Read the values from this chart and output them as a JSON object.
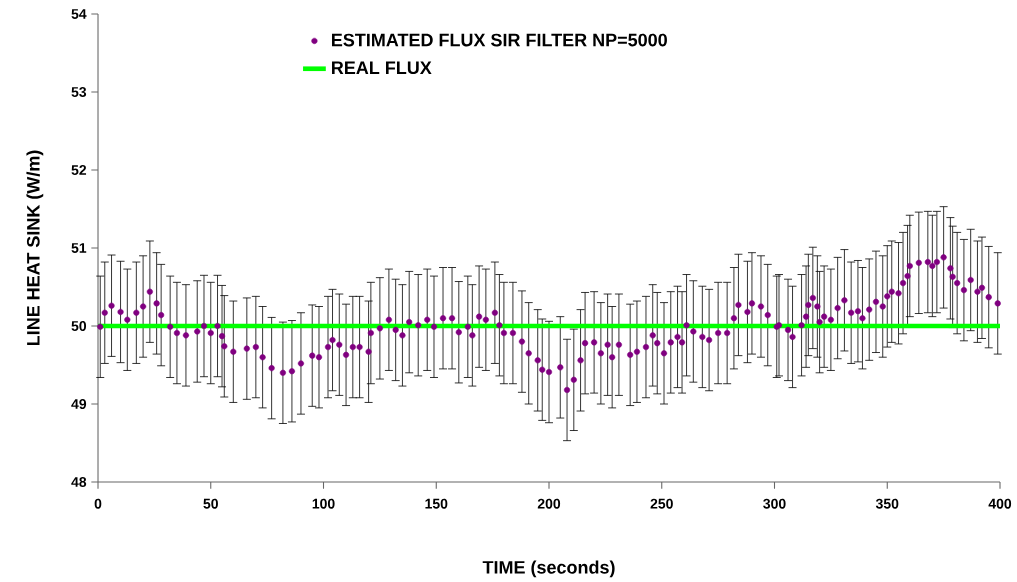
{
  "chart_data": {
    "type": "scatter",
    "xlabel": "TIME (seconds)",
    "ylabel": "LINE HEAT SINK (W/m)",
    "xlim": [
      0,
      400
    ],
    "xticks": [
      0,
      50,
      100,
      150,
      200,
      250,
      300,
      350,
      400
    ],
    "ylim": [
      48,
      54
    ],
    "yticks": [
      48,
      49,
      50,
      51,
      52,
      53,
      54
    ],
    "grid": false,
    "legend": "top",
    "series": [
      {
        "name": "ESTIMATED  FLUX SIR FILTER NP=5000",
        "type": "scatter",
        "color": "#800080",
        "x": [
          1,
          3,
          6,
          10,
          13,
          17,
          20,
          23,
          26,
          28,
          32,
          35,
          39,
          44,
          47,
          50,
          53,
          55,
          56,
          60,
          66,
          70,
          73,
          77,
          82,
          86,
          90,
          95,
          98,
          102,
          104,
          107,
          110,
          113,
          116,
          120,
          121,
          125,
          129,
          132,
          135,
          138,
          142,
          146,
          149,
          153,
          157,
          160,
          164,
          166,
          169,
          172,
          176,
          178,
          180,
          184,
          188,
          191,
          195,
          197,
          200,
          205,
          208,
          211,
          214,
          216,
          220,
          223,
          226,
          228,
          231,
          236,
          239,
          243,
          246,
          248,
          251,
          254,
          257,
          259,
          261,
          264,
          268,
          271,
          275,
          279,
          282,
          284,
          288,
          290,
          294,
          297,
          301,
          302,
          306,
          308,
          312,
          314,
          315,
          317,
          319,
          320,
          322,
          325,
          328,
          331,
          334,
          337,
          339,
          342,
          345,
          348,
          350,
          352,
          355,
          357,
          359,
          360,
          364,
          368,
          370,
          372,
          375,
          378,
          379,
          381,
          384,
          387,
          390,
          392,
          395,
          399
        ],
        "values": [
          49.99,
          50.17,
          50.26,
          50.18,
          50.08,
          50.17,
          50.25,
          50.44,
          50.29,
          50.14,
          49.99,
          49.91,
          49.88,
          49.93,
          50.0,
          49.91,
          50.0,
          49.87,
          49.74,
          49.67,
          49.71,
          49.73,
          49.6,
          49.46,
          49.4,
          49.42,
          49.52,
          49.62,
          49.6,
          49.73,
          49.82,
          49.76,
          49.63,
          49.73,
          49.73,
          49.67,
          49.91,
          49.97,
          50.08,
          49.95,
          49.88,
          50.05,
          50.01,
          50.08,
          49.99,
          50.1,
          50.1,
          49.92,
          49.99,
          49.88,
          50.12,
          50.08,
          50.17,
          50.01,
          49.91,
          49.91,
          49.8,
          49.65,
          49.56,
          49.44,
          49.41,
          49.47,
          49.18,
          49.31,
          49.56,
          49.78,
          49.79,
          49.65,
          49.76,
          49.6,
          49.76,
          49.63,
          49.67,
          49.73,
          49.88,
          49.78,
          49.65,
          49.79,
          49.86,
          49.79,
          50.01,
          49.93,
          49.86,
          49.82,
          49.91,
          49.91,
          50.1,
          50.27,
          50.18,
          50.29,
          50.25,
          50.14,
          49.99,
          50.01,
          49.95,
          49.86,
          50.01,
          50.12,
          50.27,
          50.36,
          50.25,
          50.05,
          50.12,
          50.08,
          50.23,
          50.33,
          50.17,
          50.19,
          50.1,
          50.21,
          50.31,
          50.25,
          50.38,
          50.44,
          50.42,
          50.55,
          50.64,
          50.77,
          50.81,
          50.82,
          50.77,
          50.82,
          50.88,
          50.74,
          50.63,
          50.55,
          50.46,
          50.59,
          50.44,
          50.49,
          50.37,
          50.29
        ],
        "errors": [
          0.65,
          0.65,
          0.65,
          0.65,
          0.65,
          0.65,
          0.65,
          0.65,
          0.65,
          0.65,
          0.65,
          0.65,
          0.65,
          0.65,
          0.65,
          0.65,
          0.65,
          0.65,
          0.65,
          0.65,
          0.65,
          0.65,
          0.65,
          0.65,
          0.65,
          0.65,
          0.65,
          0.65,
          0.65,
          0.65,
          0.65,
          0.65,
          0.65,
          0.65,
          0.65,
          0.65,
          0.65,
          0.65,
          0.65,
          0.65,
          0.65,
          0.65,
          0.65,
          0.65,
          0.65,
          0.65,
          0.65,
          0.65,
          0.65,
          0.65,
          0.65,
          0.65,
          0.65,
          0.65,
          0.65,
          0.65,
          0.65,
          0.65,
          0.65,
          0.65,
          0.65,
          0.65,
          0.65,
          0.65,
          0.65,
          0.65,
          0.65,
          0.65,
          0.65,
          0.65,
          0.65,
          0.65,
          0.65,
          0.65,
          0.65,
          0.65,
          0.65,
          0.65,
          0.65,
          0.65,
          0.65,
          0.65,
          0.65,
          0.65,
          0.65,
          0.65,
          0.65,
          0.65,
          0.65,
          0.65,
          0.65,
          0.65,
          0.65,
          0.65,
          0.65,
          0.65,
          0.65,
          0.65,
          0.65,
          0.65,
          0.65,
          0.65,
          0.65,
          0.65,
          0.65,
          0.65,
          0.65,
          0.65,
          0.65,
          0.65,
          0.65,
          0.65,
          0.65,
          0.65,
          0.65,
          0.65,
          0.65,
          0.65,
          0.65,
          0.65,
          0.65,
          0.65,
          0.65,
          0.65,
          0.65,
          0.65,
          0.65,
          0.65,
          0.65,
          0.65,
          0.65,
          0.65
        ]
      },
      {
        "name": "REAL FLUX",
        "type": "line",
        "color": "#00ff00",
        "x": [
          0,
          400
        ],
        "values": [
          50,
          50
        ]
      }
    ]
  }
}
